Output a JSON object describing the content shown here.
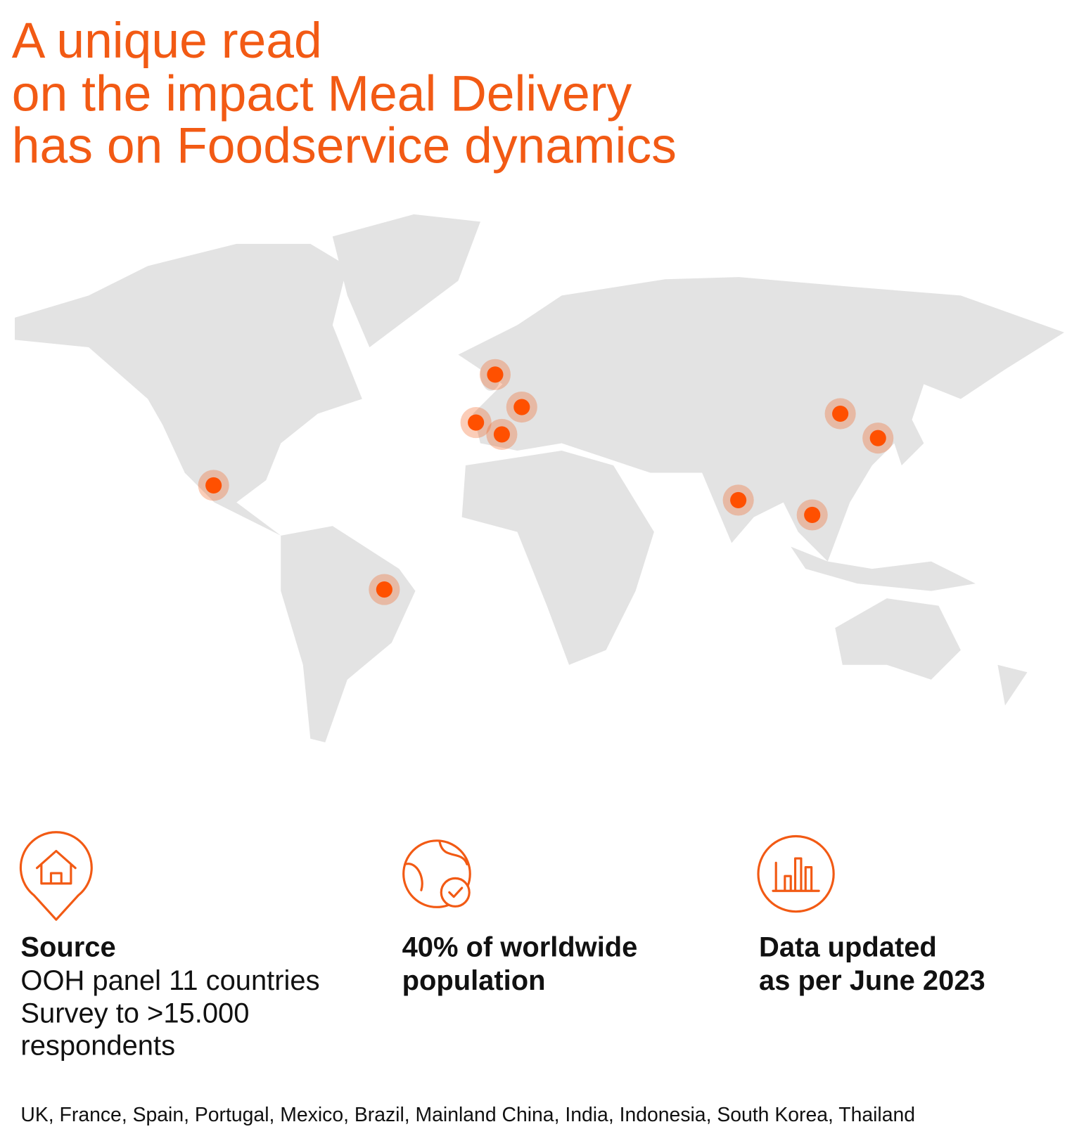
{
  "header": {
    "title_lines": [
      "A unique read",
      "on the impact Meal Delivery",
      "has on Foodservice dynamics"
    ]
  },
  "stats": [
    {
      "heading": "Source",
      "lines": [
        "OOH panel 11 countries",
        "Survey to >15.000",
        "respondents"
      ]
    },
    {
      "heading_lines": [
        "40% of worldwide",
        "population"
      ]
    },
    {
      "heading_lines": [
        "Data updated",
        "as per June 2023"
      ]
    }
  ],
  "footer": {
    "countries": "UK, France, Spain, Portugal, Mexico, Brazil, Mainland China, India, Indonesia, South Korea, Thailand"
  }
}
